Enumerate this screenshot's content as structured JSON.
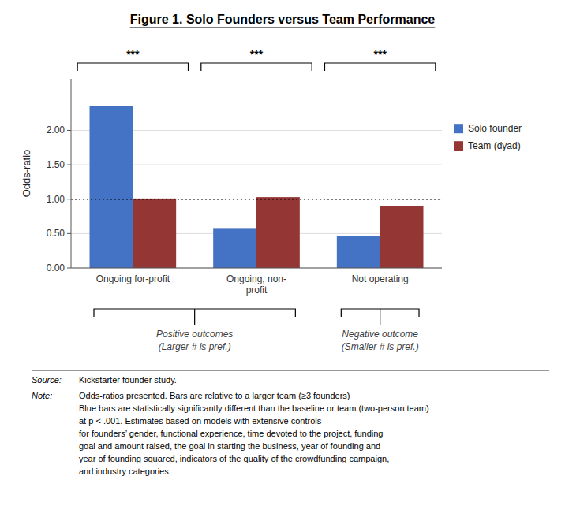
{
  "chart_data": {
    "type": "bar",
    "title": "Figure 1. Solo Founders versus Team Performance",
    "categories": [
      "Ongoing for-profit",
      "Ongoing, non-\nprofit",
      "Not operating"
    ],
    "series": [
      {
        "name": "Solo founder",
        "color": "#4472C4",
        "values": [
          2.35,
          0.58,
          0.46
        ]
      },
      {
        "name": "Team (dyad)",
        "color": "#943634",
        "values": [
          1.01,
          1.03,
          0.9
        ]
      }
    ],
    "ylabel": "Odds-ratio",
    "ylim": [
      0,
      2.75
    ],
    "yticks": [
      {
        "value": 0,
        "label": "0.00"
      },
      {
        "value": 0.5,
        "label": "0.50"
      },
      {
        "value": 1,
        "label": "1.00"
      },
      {
        "value": 1.5,
        "label": "1.50"
      },
      {
        "value": 2,
        "label": "2.00"
      }
    ],
    "reference_line": 1.0,
    "significance_stars": [
      "***",
      "***",
      "***"
    ],
    "annotations": [
      "Positive outcomes",
      "(Larger # is pref.)",
      "Negative outcome",
      "(Smaller # is pref.)"
    ],
    "source_label": "Source:",
    "source": "Kickstarter founder study.",
    "note_label": "Note:",
    "note": [
      "Odds-ratios presented. Bars are relative to a larger team (≥3 founders)",
      "Blue bars are statistically significantly different than the baseline or team (two-person team)",
      "at p < .001. Estimates based on models with extensive controls",
      "for founders’ gender, functional experience, time devoted to the project, funding",
      "goal and amount raised, the goal in starting the business, year of founding and",
      "year of founding squared, indicators of the quality of the crowdfunding campaign,",
      "and industry categories."
    ],
    "grid": true,
    "legend": "right"
  }
}
